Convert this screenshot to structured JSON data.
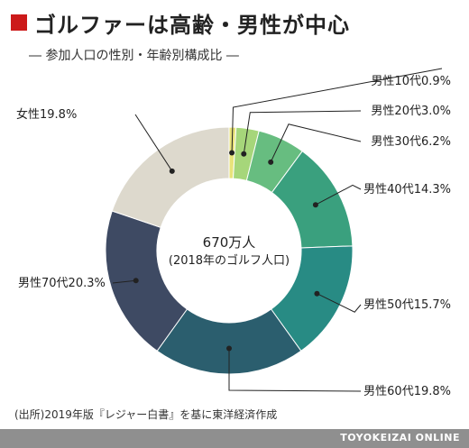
{
  "header": {
    "title": "ゴルファーは高齢・男性が中心",
    "subtitle": "― 参加人口の性別・年齢別構成比 ―",
    "accent_color": "#cc1a1a"
  },
  "chart_data": {
    "type": "pie",
    "style": "donut",
    "center_value": "670万人",
    "center_note": "(2018年のゴルフ人口)",
    "slices": [
      {
        "label": "男性10代",
        "value": 0.9,
        "value_label": "0.9%",
        "color": "#e8e37a"
      },
      {
        "label": "男性20代",
        "value": 3.0,
        "value_label": "3.0%",
        "color": "#a6d67a"
      },
      {
        "label": "男性30代",
        "value": 6.2,
        "value_label": "6.2%",
        "color": "#67bd80"
      },
      {
        "label": "男性40代",
        "value": 14.3,
        "value_label": "14.3%",
        "color": "#3aa07e"
      },
      {
        "label": "男性50代",
        "value": 15.7,
        "value_label": "15.7%",
        "color": "#288b84"
      },
      {
        "label": "男性60代",
        "value": 19.8,
        "value_label": "19.8%",
        "color": "#2b5e6e"
      },
      {
        "label": "男性70代",
        "value": 20.3,
        "value_label": "20.3%",
        "color": "#3e4a63"
      },
      {
        "label": "女性",
        "value": 19.8,
        "value_label": "19.8%",
        "color": "#ddd9cd"
      }
    ]
  },
  "footer": {
    "source": "(出所)2019年版『レジャー白書』を基に東洋経済作成",
    "brand": "TOYOKEIZAI ONLINE"
  }
}
